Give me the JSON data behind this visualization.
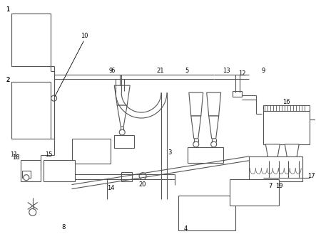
{
  "bg_color": "#ffffff",
  "lc": "#555555",
  "lw": 0.8,
  "figsize": [
    4.43,
    3.29
  ],
  "dpi": 100
}
